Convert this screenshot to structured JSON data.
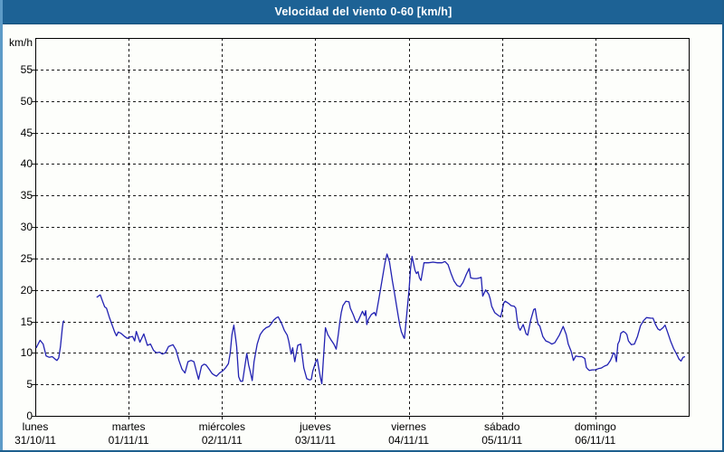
{
  "window": {
    "title": "Velocidad del viento 0-60 [km/h]"
  },
  "colors": {
    "title_bar_bg": "#1d6295",
    "frame_light_edge": "#5d9bc7",
    "frame_dark_edge": "#1d5f8e",
    "content_bg": "#fdfefb",
    "grid": "#1a1a1a",
    "plot_border": "#000000",
    "line": "#2222b2",
    "text": "#000000",
    "title_text": "#ffffff"
  },
  "y_axis": {
    "unit_label": "km/h",
    "ticks": [
      0,
      5,
      10,
      15,
      20,
      25,
      30,
      35,
      40,
      45,
      50,
      55
    ],
    "min": 0,
    "max": 60
  },
  "x_axis": {
    "days": [
      {
        "name": "lunes",
        "date": "31/10/11"
      },
      {
        "name": "martes",
        "date": "01/11/11"
      },
      {
        "name": "miércoles",
        "date": "02/11/11"
      },
      {
        "name": "jueves",
        "date": "03/11/11"
      },
      {
        "name": "viernes",
        "date": "04/11/11"
      },
      {
        "name": "sábado",
        "date": "05/11/11"
      },
      {
        "name": "domingo",
        "date": "06/11/11"
      }
    ]
  },
  "chart_data": {
    "type": "line",
    "title": "Velocidad del viento 0-60 [km/h]",
    "xlabel": "",
    "ylabel": "km/h",
    "ylim": [
      0,
      60
    ],
    "ytick_step": 5,
    "x_unit": "days, 0 = lunes 31/10/11 00:00, 7 = end of domingo 06/11/11",
    "x_range_days": [
      0,
      7
    ],
    "grid": "dashed",
    "legend": "none",
    "series": [
      {
        "name": "velocidad del viento",
        "note": "two segments; data gap lunes ~08:00-16:00",
        "segments": [
          [
            [
              0.01,
              10.8
            ],
            [
              0.03,
              11.4
            ],
            [
              0.051,
              12.0
            ],
            [
              0.084,
              11.4
            ],
            [
              0.116,
              9.5
            ],
            [
              0.148,
              9.3
            ],
            [
              0.181,
              9.4
            ],
            [
              0.213,
              9.0
            ],
            [
              0.232,
              8.8
            ],
            [
              0.251,
              9.2
            ],
            [
              0.27,
              11.0
            ],
            [
              0.29,
              14.0
            ],
            [
              0.3,
              15.0
            ],
            [
              0.31,
              15.1
            ]
          ],
          [
            [
              0.657,
              18.8
            ],
            [
              0.675,
              19.0
            ],
            [
              0.696,
              19.2
            ],
            [
              0.72,
              18.2
            ],
            [
              0.744,
              17.3
            ],
            [
              0.763,
              17.1
            ],
            [
              0.792,
              15.7
            ],
            [
              0.821,
              14.5
            ],
            [
              0.85,
              13.3
            ],
            [
              0.87,
              12.7
            ],
            [
              0.889,
              13.3
            ],
            [
              0.918,
              13.1
            ],
            [
              0.957,
              12.6
            ],
            [
              0.986,
              12.3
            ],
            [
              1.01,
              12.5
            ],
            [
              1.042,
              12.6
            ],
            [
              1.065,
              11.9
            ],
            [
              1.082,
              13.4
            ],
            [
              1.121,
              11.7
            ],
            [
              1.162,
              13.0
            ],
            [
              1.201,
              11.2
            ],
            [
              1.234,
              11.4
            ],
            [
              1.266,
              10.4
            ],
            [
              1.298,
              10.0
            ],
            [
              1.331,
              10.1
            ],
            [
              1.362,
              9.8
            ],
            [
              1.394,
              10.0
            ],
            [
              1.427,
              11.0
            ],
            [
              1.475,
              11.3
            ],
            [
              1.507,
              10.5
            ],
            [
              1.539,
              8.8
            ],
            [
              1.572,
              7.4
            ],
            [
              1.604,
              6.8
            ],
            [
              1.636,
              8.6
            ],
            [
              1.669,
              8.8
            ],
            [
              1.7,
              8.6
            ],
            [
              1.733,
              6.7
            ],
            [
              1.749,
              5.8
            ],
            [
              1.781,
              7.9
            ],
            [
              1.807,
              8.2
            ],
            [
              1.829,
              8.1
            ],
            [
              1.862,
              7.4
            ],
            [
              1.894,
              6.7
            ],
            [
              1.926,
              6.4
            ],
            [
              1.942,
              6.3
            ],
            [
              1.974,
              6.8
            ],
            [
              2.005,
              7.1
            ],
            [
              2.037,
              7.6
            ],
            [
              2.069,
              8.3
            ],
            [
              2.088,
              10.0
            ],
            [
              2.107,
              12.9
            ],
            [
              2.127,
              14.4
            ],
            [
              2.146,
              12.4
            ],
            [
              2.157,
              11.0
            ],
            [
              2.166,
              9.0
            ],
            [
              2.179,
              6.2
            ],
            [
              2.199,
              5.5
            ],
            [
              2.221,
              5.5
            ],
            [
              2.247,
              8.1
            ],
            [
              2.266,
              9.9
            ],
            [
              2.285,
              8.1
            ],
            [
              2.305,
              6.9
            ],
            [
              2.324,
              5.6
            ],
            [
              2.343,
              8.6
            ],
            [
              2.363,
              10.2
            ],
            [
              2.377,
              11.4
            ],
            [
              2.409,
              12.9
            ],
            [
              2.442,
              13.6
            ],
            [
              2.473,
              14.0
            ],
            [
              2.505,
              14.2
            ],
            [
              2.522,
              14.5
            ],
            [
              2.554,
              15.2
            ],
            [
              2.586,
              15.6
            ],
            [
              2.602,
              15.7
            ],
            [
              2.635,
              14.8
            ],
            [
              2.667,
              13.6
            ],
            [
              2.699,
              12.8
            ],
            [
              2.715,
              11.9
            ],
            [
              2.741,
              9.8
            ],
            [
              2.757,
              10.8
            ],
            [
              2.78,
              8.6
            ],
            [
              2.812,
              11.2
            ],
            [
              2.844,
              11.4
            ],
            [
              2.86,
              9.5
            ],
            [
              2.877,
              7.6
            ],
            [
              2.909,
              5.9
            ],
            [
              2.94,
              5.7
            ],
            [
              2.957,
              5.8
            ],
            [
              2.973,
              7.1
            ],
            [
              3.005,
              8.6
            ],
            [
              3.021,
              9.0
            ],
            [
              3.037,
              7.6
            ],
            [
              3.053,
              6.2
            ],
            [
              3.07,
              5.1
            ],
            [
              3.108,
              14.0
            ],
            [
              3.134,
              12.9
            ],
            [
              3.166,
              12.1
            ],
            [
              3.198,
              11.4
            ],
            [
              3.224,
              10.6
            ],
            [
              3.246,
              12.9
            ],
            [
              3.263,
              15.0
            ],
            [
              3.278,
              16.4
            ],
            [
              3.295,
              17.5
            ],
            [
              3.327,
              18.2
            ],
            [
              3.36,
              18.1
            ],
            [
              3.375,
              17.1
            ],
            [
              3.408,
              16.0
            ],
            [
              3.43,
              15.1
            ],
            [
              3.45,
              14.8
            ],
            [
              3.472,
              15.5
            ],
            [
              3.505,
              16.6
            ],
            [
              3.527,
              15.9
            ],
            [
              3.54,
              16.7
            ],
            [
              3.551,
              14.5
            ],
            [
              3.568,
              15.3
            ],
            [
              3.601,
              16.1
            ],
            [
              3.633,
              16.4
            ],
            [
              3.649,
              15.9
            ],
            [
              3.681,
              18.6
            ],
            [
              3.713,
              21.4
            ],
            [
              3.746,
              24.3
            ],
            [
              3.768,
              25.7
            ],
            [
              3.794,
              24.5
            ],
            [
              3.81,
              22.9
            ],
            [
              3.826,
              21.4
            ],
            [
              3.842,
              20.0
            ],
            [
              3.858,
              18.6
            ],
            [
              3.874,
              17.1
            ],
            [
              3.89,
              15.7
            ],
            [
              3.906,
              14.3
            ],
            [
              3.923,
              13.3
            ],
            [
              3.949,
              12.4
            ],
            [
              3.955,
              12.3
            ],
            [
              4.004,
              20.0
            ],
            [
              4.02,
              23.3
            ],
            [
              4.036,
              25.3
            ],
            [
              4.068,
              23.1
            ],
            [
              4.084,
              22.6
            ],
            [
              4.1,
              22.9
            ],
            [
              4.116,
              21.9
            ],
            [
              4.132,
              21.5
            ],
            [
              4.164,
              24.3
            ],
            [
              4.212,
              24.3
            ],
            [
              4.261,
              24.4
            ],
            [
              4.309,
              24.3
            ],
            [
              4.357,
              24.3
            ],
            [
              4.389,
              24.5
            ],
            [
              4.422,
              24.0
            ],
            [
              4.454,
              22.6
            ],
            [
              4.486,
              21.4
            ],
            [
              4.519,
              20.7
            ],
            [
              4.551,
              20.5
            ],
            [
              4.583,
              21.2
            ],
            [
              4.616,
              22.4
            ],
            [
              4.648,
              23.4
            ],
            [
              4.664,
              21.9
            ],
            [
              4.697,
              21.8
            ],
            [
              4.729,
              21.8
            ],
            [
              4.761,
              21.9
            ],
            [
              4.777,
              22.0
            ],
            [
              4.793,
              19.0
            ],
            [
              4.825,
              20.0
            ],
            [
              4.858,
              19.3
            ],
            [
              4.873,
              18.6
            ],
            [
              4.889,
              17.4
            ],
            [
              4.921,
              16.4
            ],
            [
              4.954,
              16.0
            ],
            [
              4.986,
              15.7
            ],
            [
              5.018,
              17.9
            ],
            [
              5.034,
              18.2
            ],
            [
              5.066,
              17.9
            ],
            [
              5.099,
              17.5
            ],
            [
              5.131,
              17.4
            ],
            [
              5.147,
              17.1
            ],
            [
              5.163,
              15.2
            ],
            [
              5.179,
              14.0
            ],
            [
              5.195,
              13.6
            ],
            [
              5.227,
              14.5
            ],
            [
              5.259,
              13.0
            ],
            [
              5.275,
              12.8
            ],
            [
              5.307,
              15.2
            ],
            [
              5.34,
              16.9
            ],
            [
              5.356,
              17.0
            ],
            [
              5.372,
              15.5
            ],
            [
              5.388,
              14.5
            ],
            [
              5.404,
              14.3
            ],
            [
              5.437,
              12.6
            ],
            [
              5.469,
              11.9
            ],
            [
              5.501,
              11.7
            ],
            [
              5.533,
              11.4
            ],
            [
              5.565,
              11.6
            ],
            [
              5.614,
              12.8
            ],
            [
              5.655,
              14.2
            ],
            [
              5.688,
              12.9
            ],
            [
              5.71,
              11.4
            ],
            [
              5.742,
              10.2
            ],
            [
              5.765,
              8.8
            ],
            [
              5.79,
              9.5
            ],
            [
              5.82,
              9.4
            ],
            [
              5.855,
              9.4
            ],
            [
              5.887,
              9.1
            ],
            [
              5.903,
              7.7
            ],
            [
              5.919,
              7.4
            ],
            [
              5.935,
              7.2
            ],
            [
              5.968,
              7.3
            ],
            [
              6.0,
              7.3
            ],
            [
              6.032,
              7.5
            ],
            [
              6.064,
              7.6
            ],
            [
              6.097,
              7.9
            ],
            [
              6.129,
              8.1
            ],
            [
              6.161,
              8.8
            ],
            [
              6.177,
              9.3
            ],
            [
              6.193,
              10.0
            ],
            [
              6.209,
              9.8
            ],
            [
              6.225,
              8.6
            ],
            [
              6.241,
              11.4
            ],
            [
              6.257,
              11.9
            ],
            [
              6.273,
              13.1
            ],
            [
              6.299,
              13.4
            ],
            [
              6.321,
              13.2
            ],
            [
              6.338,
              12.9
            ],
            [
              6.354,
              11.9
            ],
            [
              6.386,
              11.3
            ],
            [
              6.418,
              11.4
            ],
            [
              6.451,
              12.6
            ],
            [
              6.483,
              14.3
            ],
            [
              6.515,
              15.1
            ],
            [
              6.548,
              15.6
            ],
            [
              6.596,
              15.5
            ],
            [
              6.618,
              15.5
            ],
            [
              6.644,
              14.5
            ],
            [
              6.67,
              13.8
            ],
            [
              6.693,
              13.6
            ],
            [
              6.725,
              14.0
            ],
            [
              6.747,
              14.4
            ],
            [
              6.773,
              13.3
            ],
            [
              6.805,
              11.9
            ],
            [
              6.838,
              10.7
            ],
            [
              6.87,
              9.8
            ],
            [
              6.896,
              9.0
            ],
            [
              6.918,
              8.7
            ],
            [
              6.94,
              9.3
            ],
            [
              6.96,
              9.4
            ]
          ]
        ]
      }
    ]
  }
}
